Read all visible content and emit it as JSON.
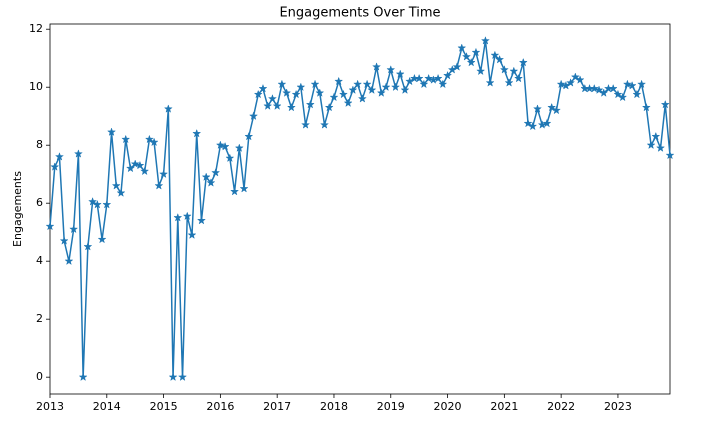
{
  "chart_data": {
    "type": "line",
    "title": "Engagements Over Time",
    "ylabel": "Engagements",
    "x": [
      "2013-01",
      "2013-02",
      "2013-03",
      "2013-04",
      "2013-05",
      "2013-06",
      "2013-07",
      "2013-08",
      "2013-09",
      "2013-10",
      "2013-11",
      "2013-12",
      "2014-01",
      "2014-02",
      "2014-03",
      "2014-04",
      "2014-05",
      "2014-06",
      "2014-07",
      "2014-08",
      "2014-09",
      "2014-10",
      "2014-11",
      "2014-12",
      "2015-01",
      "2015-02",
      "2015-03",
      "2015-04",
      "2015-05",
      "2015-06",
      "2015-07",
      "2015-08",
      "2015-09",
      "2015-10",
      "2015-11",
      "2015-12",
      "2016-01",
      "2016-02",
      "2016-03",
      "2016-04",
      "2016-05",
      "2016-06",
      "2016-07",
      "2016-08",
      "2016-09",
      "2016-10",
      "2016-11",
      "2016-12",
      "2017-01",
      "2017-02",
      "2017-03",
      "2017-04",
      "2017-05",
      "2017-06",
      "2017-07",
      "2017-08",
      "2017-09",
      "2017-10",
      "2017-11",
      "2017-12",
      "2018-01",
      "2018-02",
      "2018-03",
      "2018-04",
      "2018-05",
      "2018-06",
      "2018-07",
      "2018-08",
      "2018-09",
      "2018-10",
      "2018-11",
      "2018-12",
      "2019-01",
      "2019-02",
      "2019-03",
      "2019-04",
      "2019-05",
      "2019-06",
      "2019-07",
      "2019-08",
      "2019-09",
      "2019-10",
      "2019-11",
      "2019-12",
      "2020-01",
      "2020-02",
      "2020-03",
      "2020-04",
      "2020-05",
      "2020-06",
      "2020-07",
      "2020-08",
      "2020-09",
      "2020-10",
      "2020-11",
      "2020-12",
      "2021-01",
      "2021-02",
      "2021-03",
      "2021-04",
      "2021-05",
      "2021-06",
      "2021-07",
      "2021-08",
      "2021-09",
      "2021-10",
      "2021-11",
      "2021-12",
      "2022-01",
      "2022-02",
      "2022-03",
      "2022-04",
      "2022-05",
      "2022-06",
      "2022-07",
      "2022-08",
      "2022-09",
      "2022-10",
      "2022-11",
      "2022-12",
      "2023-01",
      "2023-02",
      "2023-03",
      "2023-04",
      "2023-05",
      "2023-06",
      "2023-07",
      "2023-08",
      "2023-09",
      "2023-10",
      "2023-11",
      "2023-12"
    ],
    "series": [
      {
        "name": "Engagements",
        "color": "#1f77b4",
        "marker": "star",
        "values": [
          5.2,
          7.25,
          7.6,
          4.7,
          4.0,
          5.1,
          7.7,
          0,
          4.5,
          6.05,
          5.95,
          4.75,
          5.95,
          8.45,
          6.6,
          6.35,
          8.2,
          7.2,
          7.35,
          7.3,
          7.1,
          8.2,
          8.1,
          6.6,
          7.0,
          9.25,
          0,
          5.5,
          0,
          5.55,
          4.9,
          8.4,
          5.4,
          6.9,
          6.7,
          7.05,
          8.0,
          7.95,
          7.55,
          6.4,
          7.9,
          6.5,
          8.3,
          9.0,
          9.75,
          9.95,
          9.35,
          9.6,
          9.35,
          10.1,
          9.8,
          9.3,
          9.75,
          10.0,
          8.7,
          9.4,
          10.1,
          9.8,
          8.7,
          9.3,
          9.65,
          10.2,
          9.75,
          9.45,
          9.9,
          10.1,
          9.6,
          10.1,
          9.9,
          10.7,
          9.8,
          10.0,
          10.6,
          10.0,
          10.45,
          9.9,
          10.2,
          10.3,
          10.3,
          10.1,
          10.3,
          10.25,
          10.3,
          10.1,
          10.4,
          10.6,
          10.7,
          11.35,
          11.05,
          10.85,
          11.2,
          10.55,
          11.6,
          10.15,
          11.1,
          10.95,
          10.6,
          10.15,
          10.55,
          10.3,
          10.85,
          8.75,
          8.65,
          9.25,
          8.7,
          8.75,
          9.3,
          9.2,
          10.1,
          10.05,
          10.15,
          10.35,
          10.25,
          9.95,
          9.95,
          9.95,
          9.9,
          9.8,
          9.95,
          9.95,
          9.75,
          9.65,
          10.1,
          10.05,
          9.75,
          10.1,
          9.3,
          8.0,
          8.3,
          7.9,
          9.4,
          7.65
        ]
      }
    ],
    "xlim": [
      "2013-01",
      "2023-12"
    ],
    "xticks": [
      2013,
      2014,
      2015,
      2016,
      2017,
      2018,
      2019,
      2020,
      2021,
      2022,
      2023
    ],
    "ylim": [
      -0.58,
      12.18
    ],
    "yticks": [
      0,
      2,
      4,
      6,
      8,
      10,
      12
    ],
    "grid": false
  }
}
